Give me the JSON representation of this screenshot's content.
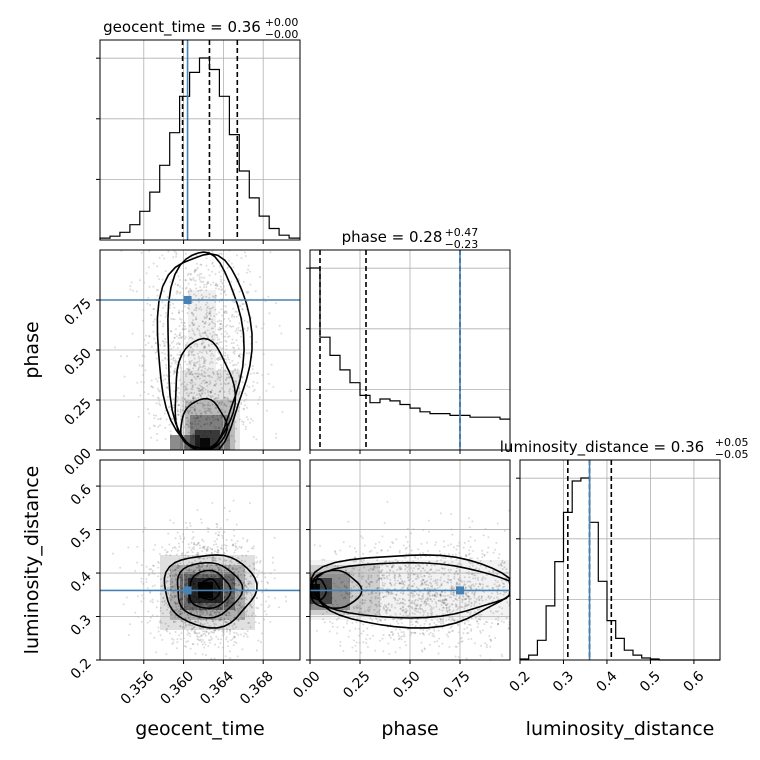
{
  "chart_data": {
    "type": "corner",
    "parameters": [
      "geocent_time",
      "phase",
      "luminosity_distance"
    ],
    "truths": {
      "geocent_time": 0.3604,
      "phase": 0.75,
      "luminosity_distance": 0.36
    },
    "colors": {
      "truth": "#4682b4",
      "hist": "#000000",
      "grid": "#b0b0b0"
    },
    "grid": true,
    "titles": {
      "geocent_time": {
        "label": "geocent_time = 0.36",
        "plus": "+0.00",
        "minus": "−0.00"
      },
      "phase": {
        "label": "phase = 0.28",
        "plus": "+0.47",
        "minus": "−0.23"
      },
      "luminosity_distance": {
        "label": "luminosity_distance = 0.36",
        "plus": "+0.05",
        "minus": "−0.05"
      }
    },
    "axis_labels": {
      "geocent_time": "geocent_time",
      "phase": "phase",
      "luminosity_distance": "luminosity_distance"
    },
    "ranges": {
      "geocent_time": [
        0.3516,
        0.3717
      ],
      "phase": [
        0.0,
        1.0
      ],
      "luminosity_distance": [
        0.2,
        0.66
      ]
    },
    "ticks": {
      "geocent_time": [
        {
          "v": 0.356,
          "label": "0.356"
        },
        {
          "v": 0.36,
          "label": "0.360"
        },
        {
          "v": 0.364,
          "label": "0.364"
        },
        {
          "v": 0.368,
          "label": "0.368"
        }
      ],
      "phase": [
        {
          "v": 0.0,
          "label": "0.00"
        },
        {
          "v": 0.25,
          "label": "0.25"
        },
        {
          "v": 0.5,
          "label": "0.50"
        },
        {
          "v": 0.75,
          "label": "0.75"
        }
      ],
      "luminosity_distance": [
        {
          "v": 0.2,
          "label": "0.2"
        },
        {
          "v": 0.3,
          "label": "0.3"
        },
        {
          "v": 0.4,
          "label": "0.4"
        },
        {
          "v": 0.5,
          "label": "0.5"
        },
        {
          "v": 0.6,
          "label": "0.6"
        }
      ]
    },
    "quantiles": {
      "geocent_time": [
        0.3599,
        0.3626,
        0.3654
      ],
      "phase": [
        0.05,
        0.28,
        0.75
      ],
      "luminosity_distance": [
        0.31,
        0.36,
        0.41
      ]
    },
    "histograms": {
      "geocent_time": {
        "edges": [
          0.3516,
          0.3526,
          0.3536,
          0.3546,
          0.3556,
          0.3566,
          0.3576,
          0.3586,
          0.3596,
          0.3606,
          0.3616,
          0.3626,
          0.3636,
          0.3646,
          0.3656,
          0.3666,
          0.3676,
          0.3686,
          0.3696,
          0.3706,
          0.3717
        ],
        "counts": [
          2,
          4,
          8,
          16,
          30,
          50,
          78,
          112,
          150,
          175,
          190,
          178,
          150,
          110,
          72,
          44,
          25,
          12,
          5,
          2
        ]
      },
      "phase": {
        "edges": [
          0.0,
          0.05,
          0.1,
          0.15,
          0.2,
          0.25,
          0.3,
          0.35,
          0.4,
          0.45,
          0.5,
          0.55,
          0.6,
          0.65,
          0.7,
          0.75,
          0.8,
          0.85,
          0.9,
          0.95,
          1.0
        ],
        "counts": [
          100,
          62,
          52,
          44,
          37,
          30,
          26,
          28,
          27,
          25,
          23,
          21,
          20,
          20,
          19,
          19,
          18,
          18,
          18,
          17
        ]
      },
      "luminosity_distance": {
        "edges": [
          0.2,
          0.22,
          0.24,
          0.26,
          0.28,
          0.3,
          0.32,
          0.34,
          0.36,
          0.38,
          0.4,
          0.42,
          0.44,
          0.46,
          0.48,
          0.5,
          0.52,
          0.54,
          0.56,
          0.58,
          0.6,
          0.62,
          0.64,
          0.66
        ],
        "counts": [
          1,
          5,
          20,
          55,
          100,
          150,
          182,
          185,
          140,
          80,
          40,
          22,
          10,
          5,
          2,
          1,
          0,
          0,
          0,
          0,
          0,
          0,
          0
        ]
      }
    },
    "contours": {
      "phase_vs_geocent_time": {
        "x": "geocent_time",
        "y": "phase",
        "peak": [
          0.362,
          0.03
        ],
        "levels": [
          {
            "xs": [
              0.3597,
              0.3643
            ],
            "ys": [
              0.0,
              0.25
            ]
          },
          {
            "xs": [
              0.359,
              0.365
            ],
            "ys": [
              0.0,
              0.55
            ]
          },
          {
            "xs": [
              0.3582,
              0.3658
            ],
            "ys": [
              0.0,
              1.0
            ]
          },
          {
            "xs": [
              0.3573,
              0.3667
            ],
            "ys": [
              0.0,
              1.0
            ]
          }
        ]
      },
      "luminosity_distance_vs_geocent_time": {
        "x": "geocent_time",
        "y": "luminosity_distance",
        "peak": [
          0.3625,
          0.36
        ],
        "levels": [
          {
            "xs": [
              0.3616,
              0.3636
            ],
            "ys": [
              0.338,
              0.385
            ]
          },
          {
            "xs": [
              0.3605,
              0.3646
            ],
            "ys": [
              0.318,
              0.405
            ]
          },
          {
            "xs": [
              0.3592,
              0.3657
            ],
            "ys": [
              0.298,
              0.425
            ]
          },
          {
            "xs": [
              0.358,
              0.3672
            ],
            "ys": [
              0.278,
              0.445
            ]
          }
        ]
      },
      "luminosity_distance_vs_phase": {
        "x": "phase",
        "y": "luminosity_distance",
        "peak": [
          0.03,
          0.36
        ],
        "levels": [
          {
            "xs": [
              0.0,
              0.08
            ],
            "ys": [
              0.338,
              0.385
            ]
          },
          {
            "xs": [
              0.0,
              0.25
            ],
            "ys": [
              0.318,
              0.405
            ]
          },
          {
            "xs": [
              0.0,
              1.0
            ],
            "ys": [
              0.298,
              0.425
            ]
          },
          {
            "xs": [
              0.0,
              1.0
            ],
            "ys": [
              0.278,
              0.445
            ]
          }
        ]
      }
    }
  }
}
